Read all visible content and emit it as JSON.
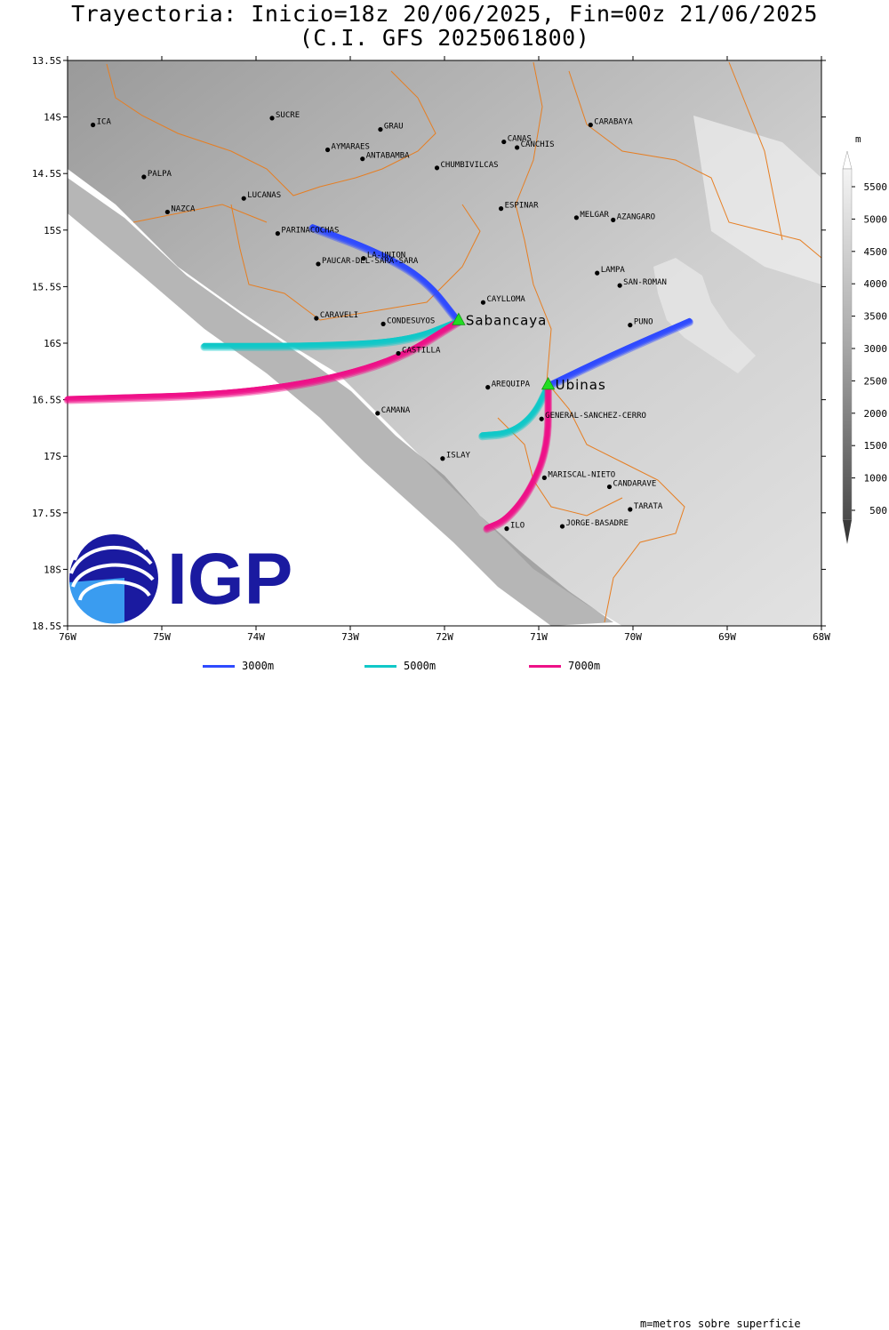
{
  "title_line1": "Trayectoria: Inicio=18z 20/06/2025, Fin=00z 21/06/2025",
  "title_line2": "(C.I. GFS 2025061800)",
  "map": {
    "lon_range": [
      -76,
      -68
    ],
    "lat_range": [
      -18.5,
      -13.5
    ],
    "lon_ticks": [
      "76W",
      "75W",
      "74W",
      "73W",
      "72W",
      "71W",
      "70W",
      "69W",
      "68W"
    ],
    "lat_ticks": [
      "13.5S",
      "14S",
      "14.5S",
      "15S",
      "15.5S",
      "16S",
      "16.5S",
      "17S",
      "17.5S",
      "18S",
      "18.5S"
    ]
  },
  "places": [
    {
      "name": "ICA",
      "lon": -75.73,
      "lat": -14.07
    },
    {
      "name": "SUCRE",
      "lon": -73.83,
      "lat": -14.01
    },
    {
      "name": "GRAU",
      "lon": -72.68,
      "lat": -14.11
    },
    {
      "name": "CANAS",
      "lon": -71.37,
      "lat": -14.22
    },
    {
      "name": "CANCHIS",
      "lon": -71.23,
      "lat": -14.27
    },
    {
      "name": "CARABAYA",
      "lon": -70.45,
      "lat": -14.07
    },
    {
      "name": "AYMARAES",
      "lon": -73.24,
      "lat": -14.29
    },
    {
      "name": "ANTABAMBA",
      "lon": -72.87,
      "lat": -14.37
    },
    {
      "name": "CHUMBIVILCAS",
      "lon": -72.08,
      "lat": -14.45
    },
    {
      "name": "PALPA",
      "lon": -75.19,
      "lat": -14.53
    },
    {
      "name": "LUCANAS",
      "lon": -74.13,
      "lat": -14.72
    },
    {
      "name": "ESPINAR",
      "lon": -71.4,
      "lat": -14.81
    },
    {
      "name": "NAZCA",
      "lon": -74.94,
      "lat": -14.84
    },
    {
      "name": "MELGAR",
      "lon": -70.6,
      "lat": -14.89
    },
    {
      "name": "AZANGARO",
      "lon": -70.21,
      "lat": -14.91
    },
    {
      "name": "PARINACOCHAS",
      "lon": -73.77,
      "lat": -15.03
    },
    {
      "name": "LA-UNION",
      "lon": -72.86,
      "lat": -15.25
    },
    {
      "name": "PAUCAR-DEL-SARA-SARA",
      "lon": -73.34,
      "lat": -15.3
    },
    {
      "name": "LAMPA",
      "lon": -70.38,
      "lat": -15.38
    },
    {
      "name": "SAN-ROMAN",
      "lon": -70.14,
      "lat": -15.49
    },
    {
      "name": "CAYLLOMA",
      "lon": -71.59,
      "lat": -15.64
    },
    {
      "name": "CARAVELI",
      "lon": -73.36,
      "lat": -15.78
    },
    {
      "name": "CONDESUYOS",
      "lon": -72.65,
      "lat": -15.83
    },
    {
      "name": "PUNO",
      "lon": -70.03,
      "lat": -15.84
    },
    {
      "name": "CASTILLA",
      "lon": -72.49,
      "lat": -16.09
    },
    {
      "name": "AREQUIPA",
      "lon": -71.54,
      "lat": -16.39
    },
    {
      "name": "GENERAL-SANCHEZ-CERRO",
      "lon": -70.97,
      "lat": -16.67
    },
    {
      "name": "CAMANA",
      "lon": -72.71,
      "lat": -16.62
    },
    {
      "name": "ISLAY",
      "lon": -72.02,
      "lat": -17.02
    },
    {
      "name": "MARISCAL-NIETO",
      "lon": -70.94,
      "lat": -17.19
    },
    {
      "name": "CANDARAVE",
      "lon": -70.25,
      "lat": -17.27
    },
    {
      "name": "TARATA",
      "lon": -70.03,
      "lat": -17.47
    },
    {
      "name": "ILO",
      "lon": -71.34,
      "lat": -17.64
    },
    {
      "name": "JORGE-BASADRE",
      "lon": -70.75,
      "lat": -17.62
    }
  ],
  "volcanoes": [
    {
      "name": "Sabancaya",
      "lon": -71.85,
      "lat": -15.79
    },
    {
      "name": "Ubinas",
      "lon": -70.9,
      "lat": -16.36
    }
  ],
  "trajectories": [
    {
      "level": "3000m",
      "color": "#2f4bff",
      "from": "Sabancaya",
      "points": [
        [
          -71.85,
          -15.79
        ],
        [
          -72.2,
          -15.42
        ],
        [
          -72.7,
          -15.18
        ],
        [
          -73.4,
          -14.96
        ]
      ]
    },
    {
      "level": "5000m",
      "color": "#10c8c8",
      "from": "Sabancaya",
      "points": [
        [
          -71.85,
          -15.79
        ],
        [
          -72.4,
          -15.97
        ],
        [
          -73.4,
          -16.01
        ],
        [
          -74.55,
          -16.01
        ]
      ]
    },
    {
      "level": "7000m",
      "color": "#ee1188",
      "from": "Sabancaya",
      "points": [
        [
          -71.85,
          -15.79
        ],
        [
          -72.6,
          -16.18
        ],
        [
          -74.0,
          -16.43
        ],
        [
          -76.0,
          -16.48
        ]
      ]
    },
    {
      "level": "3000m",
      "color": "#2f4bff",
      "from": "Ubinas",
      "points": [
        [
          -70.9,
          -16.36
        ],
        [
          -70.2,
          -16.08
        ],
        [
          -69.4,
          -15.79
        ]
      ]
    },
    {
      "level": "5000m",
      "color": "#10c8c8",
      "from": "Ubinas",
      "points": [
        [
          -70.9,
          -16.36
        ],
        [
          -71.05,
          -16.62
        ],
        [
          -71.3,
          -16.78
        ],
        [
          -71.6,
          -16.8
        ]
      ]
    },
    {
      "level": "7000m",
      "color": "#ee1188",
      "from": "Ubinas",
      "points": [
        [
          -70.9,
          -16.36
        ],
        [
          -70.9,
          -16.9
        ],
        [
          -71.1,
          -17.3
        ],
        [
          -71.35,
          -17.55
        ],
        [
          -71.55,
          -17.62
        ]
      ]
    }
  ],
  "colorbar": {
    "unit": "m",
    "ticks": [
      "500",
      "1000",
      "1500",
      "2000",
      "2500",
      "3000",
      "3500",
      "4000",
      "4500",
      "5000",
      "5500"
    ]
  },
  "legend": [
    {
      "label": "3000m",
      "color": "#2f4bff"
    },
    {
      "label": "5000m",
      "color": "#10c8c8"
    },
    {
      "label": "7000m",
      "color": "#ee1188"
    }
  ],
  "footnote": "m=metros sobre superficie",
  "logo_text": "IGP"
}
